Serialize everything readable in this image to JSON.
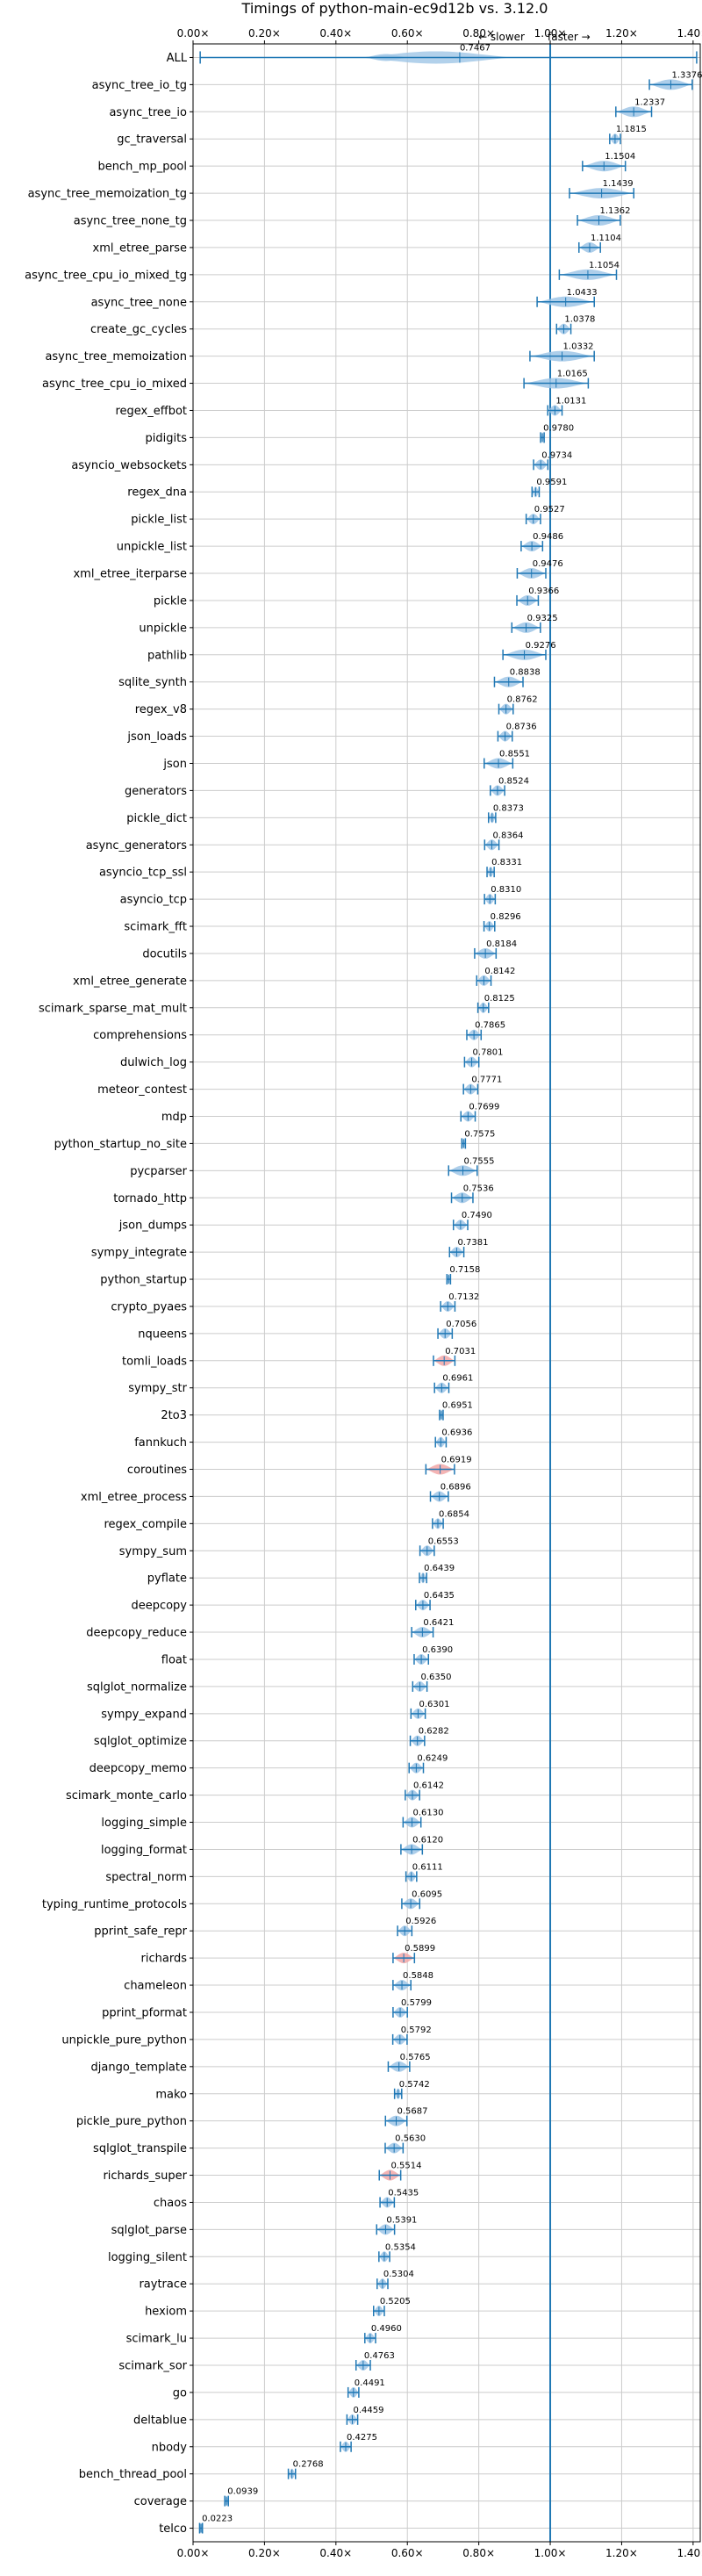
{
  "chart_data": {
    "type": "violin",
    "title": "Timings of python-main-ec9d12b vs. 3.12.0",
    "annotation_left": "← slower",
    "annotation_right": "faster →",
    "xlim": [
      0.0,
      1.42
    ],
    "xticks": [
      0.0,
      0.2,
      0.4,
      0.6,
      0.8,
      1.0,
      1.2,
      1.4
    ],
    "xtick_labels": [
      "0.00×",
      "0.20×",
      "0.40×",
      "0.60×",
      "0.80×",
      "1.00×",
      "1.20×",
      "1.40×"
    ],
    "grid": true,
    "reference_line": 1.0,
    "colors": {
      "violin": "#9fc6e6",
      "highlight": "#f2a7a7",
      "line": "#1f77b4",
      "grid": "#cccccc"
    },
    "all_row": {
      "label": "ALL",
      "value": 0.7467,
      "value_label": "0.7467",
      "min": 0.02,
      "max": 1.41
    },
    "rows": [
      {
        "label": "async_tree_io_tg",
        "value": 1.3376,
        "value_label": "1.3376",
        "spread": 0.06
      },
      {
        "label": "async_tree_io",
        "value": 1.2337,
        "value_label": "1.2337",
        "spread": 0.05
      },
      {
        "label": "gc_traversal",
        "value": 1.1815,
        "value_label": "1.1815",
        "spread": 0.015
      },
      {
        "label": "bench_mp_pool",
        "value": 1.1504,
        "value_label": "1.1504",
        "spread": 0.06
      },
      {
        "label": "async_tree_memoization_tg",
        "value": 1.1439,
        "value_label": "1.1439",
        "spread": 0.09
      },
      {
        "label": "async_tree_none_tg",
        "value": 1.1362,
        "value_label": "1.1362",
        "spread": 0.06
      },
      {
        "label": "xml_etree_parse",
        "value": 1.1104,
        "value_label": "1.1104",
        "spread": 0.03
      },
      {
        "label": "async_tree_cpu_io_mixed_tg",
        "value": 1.1054,
        "value_label": "1.1054",
        "spread": 0.08
      },
      {
        "label": "async_tree_none",
        "value": 1.0433,
        "value_label": "1.0433",
        "spread": 0.08
      },
      {
        "label": "create_gc_cycles",
        "value": 1.0378,
        "value_label": "1.0378",
        "spread": 0.02
      },
      {
        "label": "async_tree_memoization",
        "value": 1.0332,
        "value_label": "1.0332",
        "spread": 0.09
      },
      {
        "label": "async_tree_cpu_io_mixed",
        "value": 1.0165,
        "value_label": "1.0165",
        "spread": 0.09
      },
      {
        "label": "regex_effbot",
        "value": 1.0131,
        "value_label": "1.0131",
        "spread": 0.02
      },
      {
        "label": "pidigits",
        "value": 0.978,
        "value_label": "0.9780",
        "spread": 0.005
      },
      {
        "label": "asyncio_websockets",
        "value": 0.9734,
        "value_label": "0.9734",
        "spread": 0.02
      },
      {
        "label": "regex_dna",
        "value": 0.9591,
        "value_label": "0.9591",
        "spread": 0.01
      },
      {
        "label": "pickle_list",
        "value": 0.9527,
        "value_label": "0.9527",
        "spread": 0.02
      },
      {
        "label": "unpickle_list",
        "value": 0.9486,
        "value_label": "0.9486",
        "spread": 0.03
      },
      {
        "label": "xml_etree_iterparse",
        "value": 0.9476,
        "value_label": "0.9476",
        "spread": 0.04
      },
      {
        "label": "pickle",
        "value": 0.9366,
        "value_label": "0.9366",
        "spread": 0.03
      },
      {
        "label": "unpickle",
        "value": 0.9325,
        "value_label": "0.9325",
        "spread": 0.04
      },
      {
        "label": "pathlib",
        "value": 0.9276,
        "value_label": "0.9276",
        "spread": 0.06
      },
      {
        "label": "sqlite_synth",
        "value": 0.8838,
        "value_label": "0.8838",
        "spread": 0.04
      },
      {
        "label": "regex_v8",
        "value": 0.8762,
        "value_label": "0.8762",
        "spread": 0.02
      },
      {
        "label": "json_loads",
        "value": 0.8736,
        "value_label": "0.8736",
        "spread": 0.02
      },
      {
        "label": "json",
        "value": 0.8551,
        "value_label": "0.8551",
        "spread": 0.04
      },
      {
        "label": "generators",
        "value": 0.8524,
        "value_label": "0.8524",
        "spread": 0.02
      },
      {
        "label": "pickle_dict",
        "value": 0.8373,
        "value_label": "0.8373",
        "spread": 0.01
      },
      {
        "label": "async_generators",
        "value": 0.8364,
        "value_label": "0.8364",
        "spread": 0.02
      },
      {
        "label": "asyncio_tcp_ssl",
        "value": 0.8331,
        "value_label": "0.8331",
        "spread": 0.01
      },
      {
        "label": "asyncio_tcp",
        "value": 0.831,
        "value_label": "0.8310",
        "spread": 0.015
      },
      {
        "label": "scimark_fft",
        "value": 0.8296,
        "value_label": "0.8296",
        "spread": 0.015
      },
      {
        "label": "docutils",
        "value": 0.8184,
        "value_label": "0.8184",
        "spread": 0.03
      },
      {
        "label": "xml_etree_generate",
        "value": 0.8142,
        "value_label": "0.8142",
        "spread": 0.02
      },
      {
        "label": "scimark_sparse_mat_mult",
        "value": 0.8125,
        "value_label": "0.8125",
        "spread": 0.015
      },
      {
        "label": "comprehensions",
        "value": 0.7865,
        "value_label": "0.7865",
        "spread": 0.02
      },
      {
        "label": "dulwich_log",
        "value": 0.7801,
        "value_label": "0.7801",
        "spread": 0.02
      },
      {
        "label": "meteor_contest",
        "value": 0.7771,
        "value_label": "0.7771",
        "spread": 0.02
      },
      {
        "label": "mdp",
        "value": 0.7699,
        "value_label": "0.7699",
        "spread": 0.02
      },
      {
        "label": "python_startup_no_site",
        "value": 0.7575,
        "value_label": "0.7575",
        "spread": 0.005
      },
      {
        "label": "pycparser",
        "value": 0.7555,
        "value_label": "0.7555",
        "spread": 0.04
      },
      {
        "label": "tornado_http",
        "value": 0.7536,
        "value_label": "0.7536",
        "spread": 0.03
      },
      {
        "label": "json_dumps",
        "value": 0.749,
        "value_label": "0.7490",
        "spread": 0.02
      },
      {
        "label": "sympy_integrate",
        "value": 0.7381,
        "value_label": "0.7381",
        "spread": 0.02
      },
      {
        "label": "python_startup",
        "value": 0.7158,
        "value_label": "0.7158",
        "spread": 0.005
      },
      {
        "label": "crypto_pyaes",
        "value": 0.7132,
        "value_label": "0.7132",
        "spread": 0.02
      },
      {
        "label": "nqueens",
        "value": 0.7056,
        "value_label": "0.7056",
        "spread": 0.02
      },
      {
        "label": "tomli_loads",
        "value": 0.7031,
        "value_label": "0.7031",
        "spread": 0.03,
        "highlight": true
      },
      {
        "label": "sympy_str",
        "value": 0.6961,
        "value_label": "0.6961",
        "spread": 0.02
      },
      {
        "label": "2to3",
        "value": 0.6951,
        "value_label": "0.6951",
        "spread": 0.005
      },
      {
        "label": "fannkuch",
        "value": 0.6936,
        "value_label": "0.6936",
        "spread": 0.015
      },
      {
        "label": "coroutines",
        "value": 0.6919,
        "value_label": "0.6919",
        "spread": 0.04,
        "highlight": true
      },
      {
        "label": "xml_etree_process",
        "value": 0.6896,
        "value_label": "0.6896",
        "spread": 0.025
      },
      {
        "label": "regex_compile",
        "value": 0.6854,
        "value_label": "0.6854",
        "spread": 0.015
      },
      {
        "label": "sympy_sum",
        "value": 0.6553,
        "value_label": "0.6553",
        "spread": 0.02
      },
      {
        "label": "pyflate",
        "value": 0.6439,
        "value_label": "0.6439",
        "spread": 0.01
      },
      {
        "label": "deepcopy",
        "value": 0.6435,
        "value_label": "0.6435",
        "spread": 0.02
      },
      {
        "label": "deepcopy_reduce",
        "value": 0.6421,
        "value_label": "0.6421",
        "spread": 0.03
      },
      {
        "label": "float",
        "value": 0.639,
        "value_label": "0.6390",
        "spread": 0.02
      },
      {
        "label": "sqlglot_normalize",
        "value": 0.635,
        "value_label": "0.6350",
        "spread": 0.02
      },
      {
        "label": "sympy_expand",
        "value": 0.6301,
        "value_label": "0.6301",
        "spread": 0.02
      },
      {
        "label": "sqlglot_optimize",
        "value": 0.6282,
        "value_label": "0.6282",
        "spread": 0.02
      },
      {
        "label": "deepcopy_memo",
        "value": 0.6249,
        "value_label": "0.6249",
        "spread": 0.02
      },
      {
        "label": "scimark_monte_carlo",
        "value": 0.6142,
        "value_label": "0.6142",
        "spread": 0.02
      },
      {
        "label": "logging_simple",
        "value": 0.613,
        "value_label": "0.6130",
        "spread": 0.025
      },
      {
        "label": "logging_format",
        "value": 0.612,
        "value_label": "0.6120",
        "spread": 0.03
      },
      {
        "label": "spectral_norm",
        "value": 0.6111,
        "value_label": "0.6111",
        "spread": 0.015
      },
      {
        "label": "typing_runtime_protocols",
        "value": 0.6095,
        "value_label": "0.6095",
        "spread": 0.025
      },
      {
        "label": "pprint_safe_repr",
        "value": 0.5926,
        "value_label": "0.5926",
        "spread": 0.02
      },
      {
        "label": "richards",
        "value": 0.5899,
        "value_label": "0.5899",
        "spread": 0.03,
        "highlight": true
      },
      {
        "label": "chameleon",
        "value": 0.5848,
        "value_label": "0.5848",
        "spread": 0.025
      },
      {
        "label": "pprint_pformat",
        "value": 0.5799,
        "value_label": "0.5799",
        "spread": 0.02
      },
      {
        "label": "unpickle_pure_python",
        "value": 0.5792,
        "value_label": "0.5792",
        "spread": 0.02
      },
      {
        "label": "django_template",
        "value": 0.5765,
        "value_label": "0.5765",
        "spread": 0.03
      },
      {
        "label": "mako",
        "value": 0.5742,
        "value_label": "0.5742",
        "spread": 0.01
      },
      {
        "label": "pickle_pure_python",
        "value": 0.5687,
        "value_label": "0.5687",
        "spread": 0.03
      },
      {
        "label": "sqlglot_transpile",
        "value": 0.563,
        "value_label": "0.5630",
        "spread": 0.025
      },
      {
        "label": "richards_super",
        "value": 0.5514,
        "value_label": "0.5514",
        "spread": 0.03,
        "highlight": true
      },
      {
        "label": "chaos",
        "value": 0.5435,
        "value_label": "0.5435",
        "spread": 0.02
      },
      {
        "label": "sqlglot_parse",
        "value": 0.5391,
        "value_label": "0.5391",
        "spread": 0.025
      },
      {
        "label": "logging_silent",
        "value": 0.5354,
        "value_label": "0.5354",
        "spread": 0.015
      },
      {
        "label": "raytrace",
        "value": 0.5304,
        "value_label": "0.5304",
        "spread": 0.015
      },
      {
        "label": "hexiom",
        "value": 0.5205,
        "value_label": "0.5205",
        "spread": 0.015
      },
      {
        "label": "scimark_lu",
        "value": 0.496,
        "value_label": "0.4960",
        "spread": 0.015
      },
      {
        "label": "scimark_sor",
        "value": 0.4763,
        "value_label": "0.4763",
        "spread": 0.02
      },
      {
        "label": "go",
        "value": 0.4491,
        "value_label": "0.4491",
        "spread": 0.015
      },
      {
        "label": "deltablue",
        "value": 0.4459,
        "value_label": "0.4459",
        "spread": 0.015
      },
      {
        "label": "nbody",
        "value": 0.4275,
        "value_label": "0.4275",
        "spread": 0.015
      },
      {
        "label": "bench_thread_pool",
        "value": 0.2768,
        "value_label": "0.2768",
        "spread": 0.01
      },
      {
        "label": "coverage",
        "value": 0.0939,
        "value_label": "0.0939",
        "spread": 0.005
      },
      {
        "label": "telco",
        "value": 0.0223,
        "value_label": "0.0223",
        "spread": 0.004
      }
    ]
  }
}
